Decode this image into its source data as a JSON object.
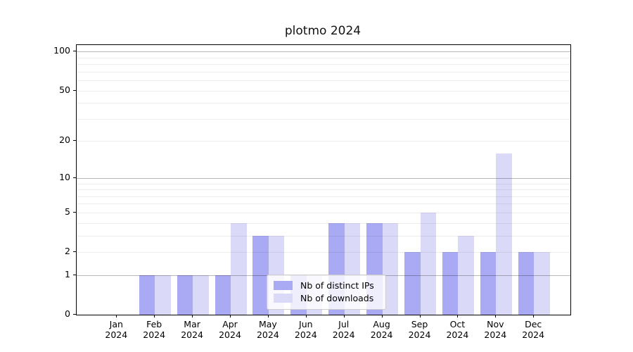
{
  "title": "plotmo 2024",
  "chart_data": {
    "type": "bar",
    "title": "plotmo 2024",
    "categories": [
      "Jan",
      "Feb",
      "Mar",
      "Apr",
      "May",
      "Jun",
      "Jul",
      "Aug",
      "Sep",
      "Oct",
      "Nov",
      "Dec"
    ],
    "category_year": "2024",
    "series": [
      {
        "name": "Nb of distinct IPs",
        "color": "#a9a9f4",
        "values": [
          0,
          1,
          1,
          1,
          3,
          1,
          4,
          4,
          2,
          2,
          2,
          2
        ]
      },
      {
        "name": "Nb of downloads",
        "color": "#dadaf8",
        "values": [
          0,
          1,
          1,
          4,
          3,
          1,
          4,
          4,
          5,
          3,
          16,
          2
        ]
      }
    ],
    "yscale": "log1p",
    "yticks": [
      0,
      1,
      2,
      5,
      10,
      20,
      50,
      100
    ],
    "ylim": [
      0,
      112
    ],
    "grid": {
      "major": [
        1,
        10,
        100
      ],
      "minor": [
        2,
        3,
        4,
        5,
        6,
        7,
        8,
        9,
        20,
        30,
        40,
        50,
        60,
        70,
        80,
        90
      ]
    },
    "legend_position": "lower center",
    "xlabel": "",
    "ylabel": ""
  }
}
